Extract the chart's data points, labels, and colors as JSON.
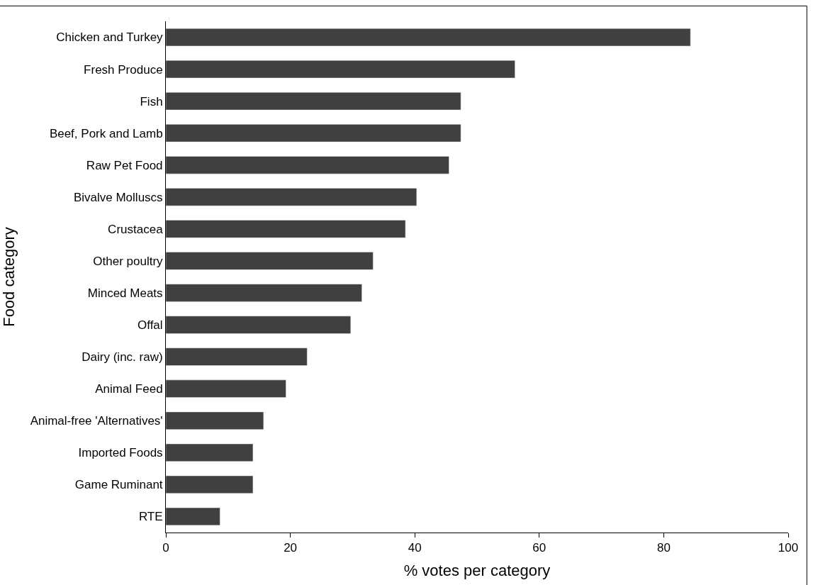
{
  "chart_data": {
    "type": "bar",
    "orientation": "horizontal",
    "xlabel": "% votes per category",
    "ylabel": "Food category",
    "categories": [
      "Chicken and Turkey",
      "Fresh Produce",
      "Fish",
      "Beef, Pork and Lamb",
      "Raw Pet Food",
      "Bivalve Molluscs",
      "Crustacea",
      "Other poultry",
      "Minced Meats",
      "Offal",
      "Dairy (inc. raw)",
      "Animal Feed",
      "Animal-free 'Alternatives'",
      "Imported Foods",
      "Game Ruminant",
      "RTE"
    ],
    "values": [
      84.3,
      56.1,
      47.4,
      47.4,
      45.5,
      40.3,
      38.5,
      33.3,
      31.5,
      29.7,
      22.7,
      19.3,
      15.7,
      14.0,
      14.0,
      8.7
    ],
    "color": "#404040",
    "xlim": [
      0,
      100
    ],
    "xticks": [
      0,
      20,
      40,
      60,
      80,
      100
    ]
  }
}
